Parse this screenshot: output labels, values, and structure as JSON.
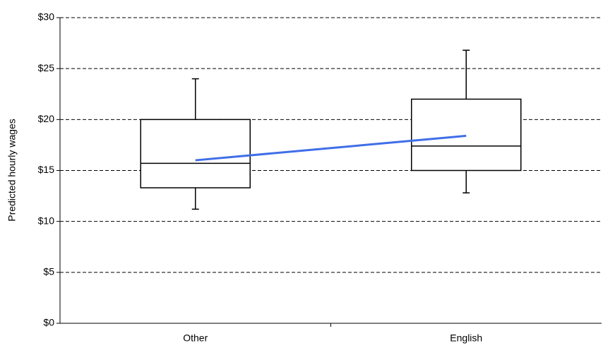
{
  "chart_data": {
    "type": "box",
    "y_label": "Predicted hourly wages",
    "categories": [
      "Other",
      "English"
    ],
    "boxes": {
      "low": [
        11.2,
        12.8
      ],
      "q1": [
        13.3,
        15.0
      ],
      "median": [
        15.7,
        17.4
      ],
      "q3": [
        20.0,
        22.0
      ],
      "high": [
        24.0,
        26.8
      ]
    },
    "mean": {
      "color": "#3f6ee8",
      "values": [
        16.0,
        18.4
      ]
    },
    "ylim": [
      0,
      30
    ],
    "yticks": [
      {
        "value": 0,
        "label": "$0"
      },
      {
        "value": 5,
        "label": "$5"
      },
      {
        "value": 10,
        "label": "$10"
      },
      {
        "value": 15,
        "label": "$15"
      },
      {
        "value": 20,
        "label": "$20"
      },
      {
        "value": 25,
        "label": "$25"
      },
      {
        "value": 30,
        "label": "$30"
      }
    ],
    "grid": true
  }
}
